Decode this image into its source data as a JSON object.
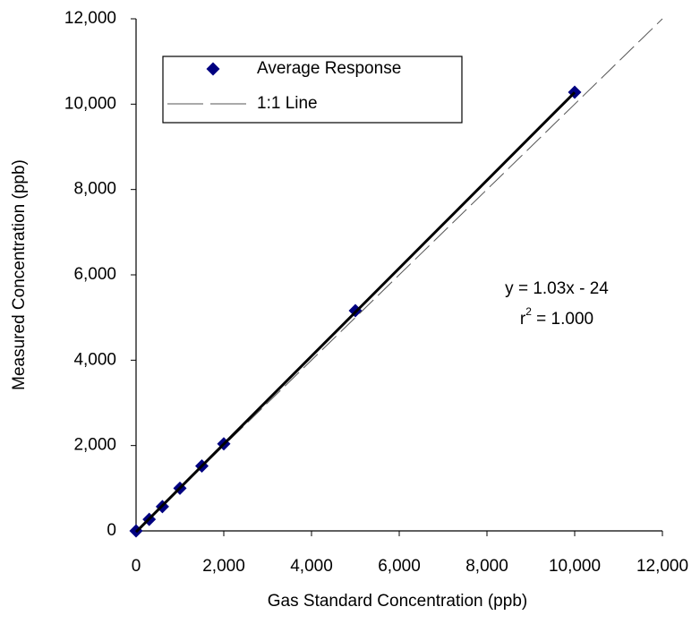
{
  "chart_data": {
    "type": "scatter",
    "x_label": "Gas Standard Concentration (ppb)",
    "y_label": "Measured Concentration (ppb)",
    "xlim": [
      0,
      12000
    ],
    "ylim": [
      0,
      12000
    ],
    "xticks": [
      {
        "value": 0,
        "label": "0"
      },
      {
        "value": 2000,
        "label": "2,000"
      },
      {
        "value": 4000,
        "label": "4,000"
      },
      {
        "value": 6000,
        "label": "6,000"
      },
      {
        "value": 8000,
        "label": "8,000"
      },
      {
        "value": 10000,
        "label": "10,000"
      },
      {
        "value": 12000,
        "label": "12,000"
      }
    ],
    "yticks": [
      {
        "value": 0,
        "label": "0"
      },
      {
        "value": 2000,
        "label": "2,000"
      },
      {
        "value": 4000,
        "label": "4,000"
      },
      {
        "value": 6000,
        "label": "6,000"
      },
      {
        "value": 8000,
        "label": "8,000"
      },
      {
        "value": 10000,
        "label": "10,000"
      },
      {
        "value": 12000,
        "label": "12,000"
      }
    ],
    "legend": "top-left",
    "series": [
      {
        "name": "Average Response",
        "kind": "markers",
        "color": "#000080",
        "x": [
          0,
          300,
          600,
          1000,
          1500,
          2000,
          5000,
          10000
        ],
        "values": [
          0,
          270,
          570,
          1000,
          1520,
          2040,
          5160,
          10280
        ]
      },
      {
        "name": "1:1 Line",
        "kind": "dashed",
        "color": "#555555",
        "x": [
          0,
          12000
        ],
        "values": [
          0,
          12000
        ]
      },
      {
        "kind": "solid",
        "color": "#000000",
        "x": [
          0,
          10000
        ],
        "values": [
          -24,
          10276
        ]
      }
    ],
    "annotation": {
      "equation": "y = 1.03x - 24",
      "r_base": "r",
      "r_sup": "2",
      "r_rest": " = 1.000"
    }
  }
}
